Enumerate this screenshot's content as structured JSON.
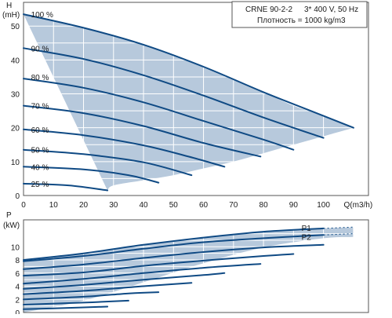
{
  "info": {
    "model": "CRNE 90-2-2",
    "supply": "3* 400 V, 50 Hz",
    "density": "Плотность = 1000 kg/m3"
  },
  "colors": {
    "fill": "#b7c9dc",
    "curve": "#0f4a84",
    "grid": "#ffffff",
    "frame": "#555555"
  },
  "chart_data": [
    {
      "type": "line",
      "name": "head",
      "ylabel_line1": "H",
      "ylabel_line2": "(mH)",
      "xlabel": "Q(m3/h)",
      "xlim": [
        0,
        115
      ],
      "ylim": [
        0,
        57
      ],
      "x_ticks": [
        "0",
        "10",
        "20",
        "30",
        "40",
        "50",
        "60",
        "70",
        "80",
        "90",
        "100",
        "Q(m3/h)"
      ],
      "y_ticks": [
        "0",
        "10",
        "20",
        "30",
        "40",
        "50"
      ],
      "grid": true,
      "envelope": {
        "upper": [
          [
            0,
            53.5
          ],
          [
            10,
            51.5
          ],
          [
            20,
            49.5
          ],
          [
            30,
            47
          ],
          [
            40,
            44.5
          ],
          [
            50,
            41.5
          ],
          [
            60,
            38
          ],
          [
            70,
            34.5
          ],
          [
            80,
            30.5
          ],
          [
            90,
            26.5
          ],
          [
            100,
            23.5
          ],
          [
            110,
            20
          ]
        ],
        "lower": [
          [
            110,
            20
          ],
          [
            100,
            17.5
          ],
          [
            90,
            15
          ],
          [
            80,
            12.5
          ],
          [
            70,
            10
          ],
          [
            60,
            8
          ],
          [
            50,
            6
          ],
          [
            40,
            4.5
          ],
          [
            30,
            3
          ],
          [
            28,
            1.5
          ]
        ]
      },
      "series": [
        {
          "label": "100 %",
          "label_x": 2.5,
          "label_y": 53.5,
          "points": [
            [
              0,
              53.5
            ],
            [
              20,
              49.5
            ],
            [
              40,
              44.5
            ],
            [
              60,
              38
            ],
            [
              80,
              30.5
            ],
            [
              100,
              23.5
            ],
            [
              110,
              20
            ]
          ]
        },
        {
          "label": "90 %",
          "label_x": 2.5,
          "label_y": 43.5,
          "points": [
            [
              0,
              43.5
            ],
            [
              20,
              40.3
            ],
            [
              40,
              35.5
            ],
            [
              60,
              29.5
            ],
            [
              80,
              23
            ],
            [
              100,
              17
            ]
          ]
        },
        {
          "label": "80 %",
          "label_x": 2.5,
          "label_y": 35,
          "points": [
            [
              0,
              34.5
            ],
            [
              20,
              31.8
            ],
            [
              40,
              27.5
            ],
            [
              60,
              22
            ],
            [
              80,
              16.5
            ],
            [
              90,
              13.5
            ]
          ]
        },
        {
          "label": "70 %",
          "label_x": 2.5,
          "label_y": 26.5,
          "points": [
            [
              0,
              26.5
            ],
            [
              20,
              24.3
            ],
            [
              40,
              20.5
            ],
            [
              60,
              15.5
            ],
            [
              79,
              11.5
            ]
          ]
        },
        {
          "label": "60 %",
          "label_x": 2.5,
          "label_y": 19.5,
          "points": [
            [
              0,
              19.5
            ],
            [
              20,
              17.8
            ],
            [
              40,
              14.8
            ],
            [
              55,
              11.5
            ],
            [
              67,
              8.5
            ]
          ]
        },
        {
          "label": "50 %",
          "label_x": 2.5,
          "label_y": 13.5,
          "points": [
            [
              0,
              13.5
            ],
            [
              20,
              12.2
            ],
            [
              40,
              9.8
            ],
            [
              56,
              6
            ]
          ]
        },
        {
          "label": "40 %",
          "label_x": 2.5,
          "label_y": 8.5,
          "points": [
            [
              0,
              8.5
            ],
            [
              20,
              7.7
            ],
            [
              35,
              6
            ],
            [
              45,
              3.8
            ]
          ]
        },
        {
          "label": "25 %",
          "label_x": 2.5,
          "label_y": 3.5,
          "points": [
            [
              0,
              3.5
            ],
            [
              15,
              3
            ],
            [
              28,
              1.5
            ]
          ]
        }
      ]
    },
    {
      "type": "area",
      "name": "power",
      "ylabel_line1": "P",
      "ylabel_line2": "(kW)",
      "xlim": [
        0,
        115
      ],
      "ylim": [
        0,
        14.1
      ],
      "y_ticks": [
        "0",
        "2",
        "4",
        "6",
        "8",
        "10"
      ],
      "grid": true,
      "envelope": {
        "upper": [
          [
            0,
            8
          ],
          [
            20,
            9
          ],
          [
            40,
            10.3
          ],
          [
            60,
            11.4
          ],
          [
            80,
            12.3
          ],
          [
            100,
            12.8
          ],
          [
            110,
            13
          ]
        ],
        "lower": [
          [
            110,
            11.5
          ],
          [
            100,
            11.3
          ],
          [
            80,
            9.9
          ],
          [
            60,
            7.5
          ],
          [
            40,
            4.6
          ],
          [
            20,
            1.8
          ],
          [
            0,
            0
          ]
        ]
      },
      "p_labels": [
        {
          "text": "P1",
          "x": 100,
          "y": 12.8
        },
        {
          "text": "P2",
          "x": 100,
          "y": 11.4
        }
      ],
      "series": [
        {
          "points": [
            [
              0,
              8
            ],
            [
              20,
              9
            ],
            [
              40,
              10.3
            ],
            [
              60,
              11.4
            ],
            [
              80,
              12.3
            ],
            [
              100,
              12.8
            ],
            [
              110,
              13
            ]
          ],
          "style": "dotted"
        },
        {
          "points": [
            [
              0,
              7.8
            ],
            [
              20,
              8.6
            ],
            [
              40,
              9.7
            ],
            [
              60,
              10.7
            ],
            [
              80,
              11.3
            ],
            [
              100,
              11.8
            ],
            [
              110,
              12
            ]
          ],
          "style": "dotted"
        },
        {
          "points": [
            [
              0,
              6.6
            ],
            [
              20,
              7.3
            ],
            [
              40,
              8.3
            ],
            [
              60,
              9.2
            ],
            [
              80,
              9.9
            ],
            [
              100,
              10.3
            ]
          ]
        },
        {
          "points": [
            [
              0,
              5.6
            ],
            [
              20,
              6.1
            ],
            [
              40,
              7.1
            ],
            [
              60,
              7.9
            ],
            [
              80,
              8.6
            ],
            [
              90,
              8.9
            ]
          ]
        },
        {
          "points": [
            [
              0,
              4.4
            ],
            [
              20,
              5.1
            ],
            [
              40,
              6
            ],
            [
              60,
              6.8
            ],
            [
              79,
              7.4
            ]
          ]
        },
        {
          "points": [
            [
              0,
              3.6
            ],
            [
              20,
              4.2
            ],
            [
              40,
              5
            ],
            [
              60,
              5.7
            ],
            [
              67,
              6
            ]
          ]
        },
        {
          "points": [
            [
              0,
              2.8
            ],
            [
              20,
              3.3
            ],
            [
              40,
              4
            ],
            [
              56,
              4.5
            ]
          ]
        },
        {
          "points": [
            [
              0,
              2
            ],
            [
              20,
              2.4
            ],
            [
              35,
              2.9
            ],
            [
              45,
              3.1
            ]
          ]
        },
        {
          "points": [
            [
              0,
              1.2
            ],
            [
              20,
              1.5
            ],
            [
              35,
              1.8
            ]
          ]
        },
        {
          "points": [
            [
              0,
              0.5
            ],
            [
              15,
              0.7
            ],
            [
              28,
              0.9
            ]
          ]
        }
      ]
    }
  ]
}
